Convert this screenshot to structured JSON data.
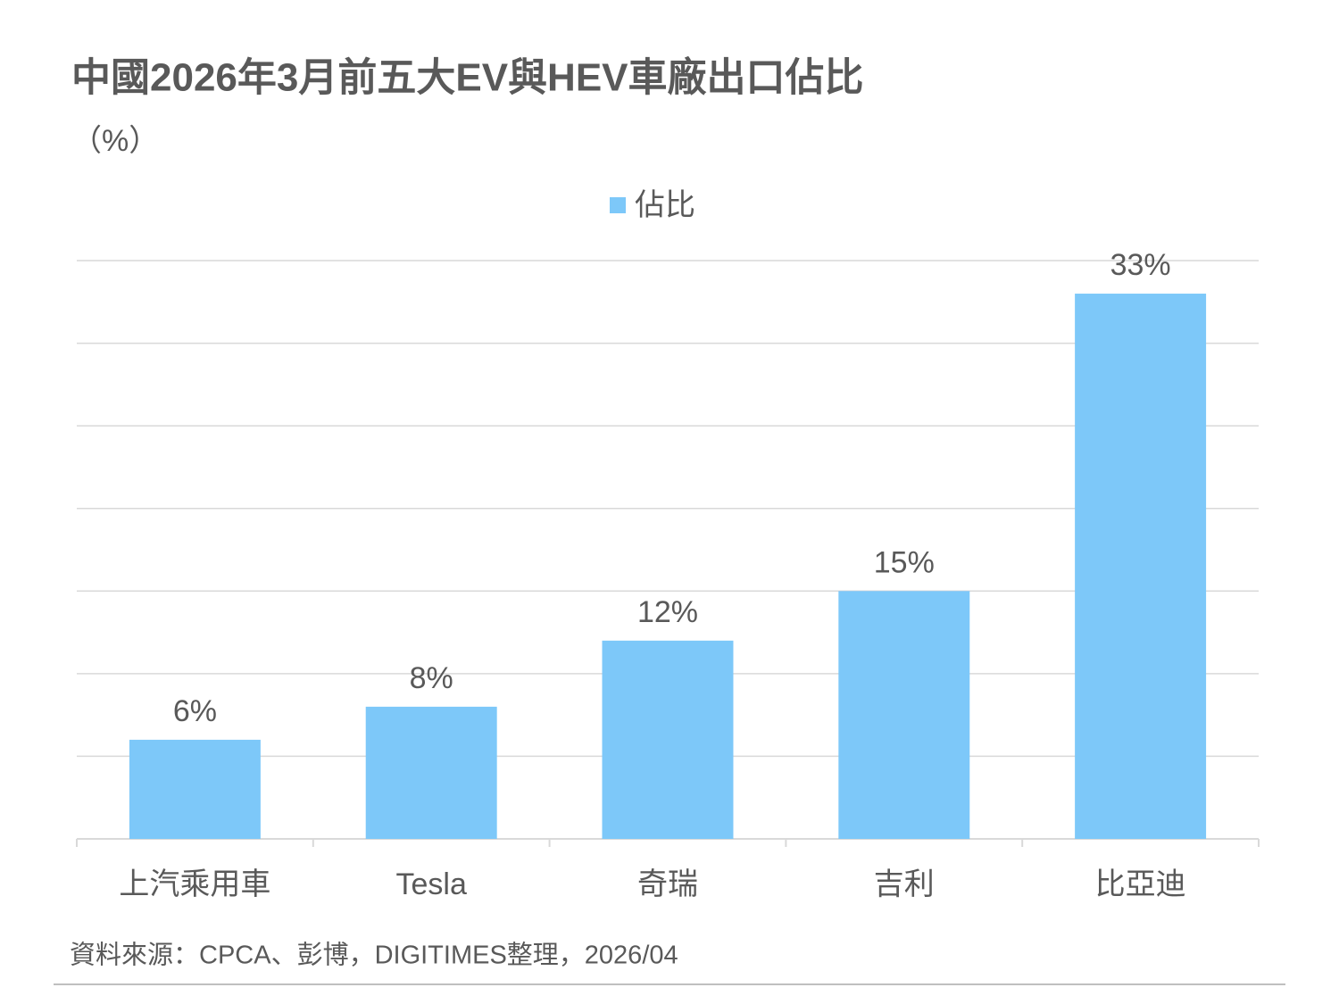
{
  "chart_data": {
    "type": "bar",
    "title": "中國2026年3月前五大EV與HEV車廠出口佔比",
    "y_label": "（%）",
    "categories": [
      "上汽乘用車",
      "Tesla",
      "奇瑞",
      "吉利",
      "比亞迪"
    ],
    "series": [
      {
        "name": "佔比",
        "color": "#7DC8F9",
        "values": [
          6,
          8,
          12,
          15,
          33
        ],
        "value_labels": [
          "6%",
          "8%",
          "12%",
          "15%",
          "33%"
        ]
      }
    ],
    "ylim": [
      0,
      35
    ],
    "yticks": [
      0,
      5,
      10,
      15,
      20,
      25,
      30,
      35
    ],
    "grid": true,
    "legend": "top",
    "source": "資料來源：CPCA、彭博，DIGITIMES整理，2026/04"
  }
}
